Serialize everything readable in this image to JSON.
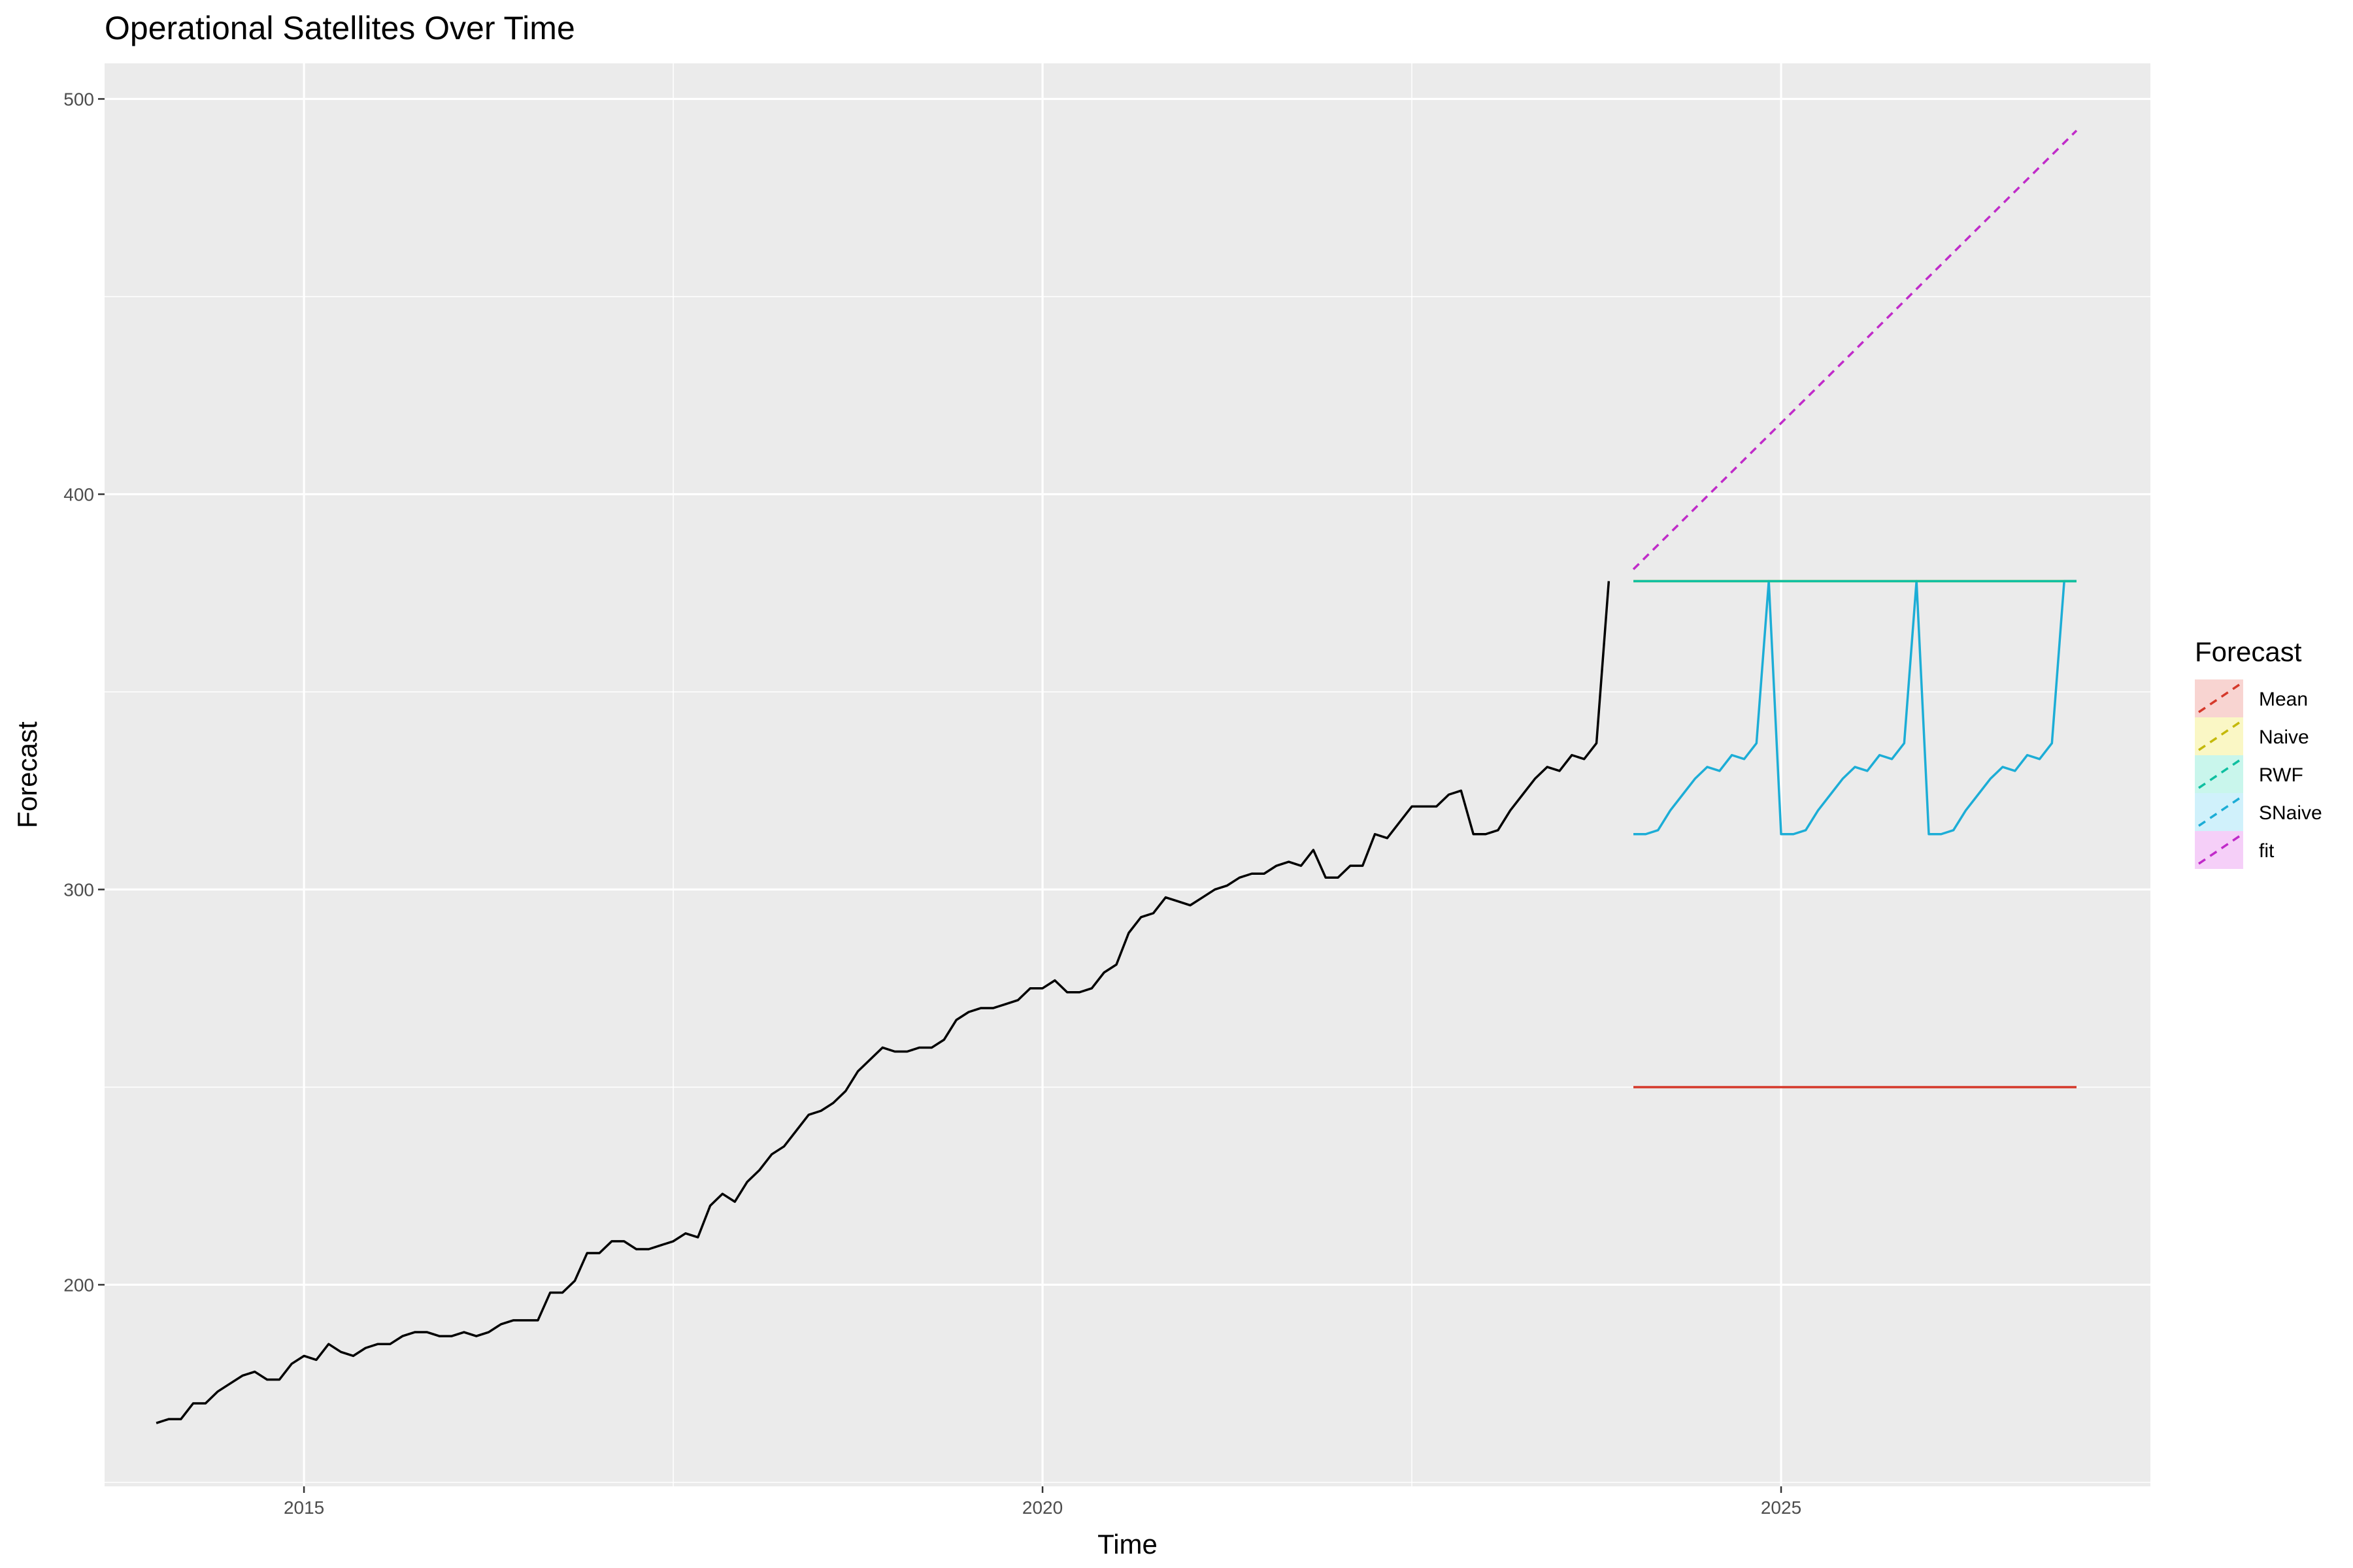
{
  "chart_data": {
    "type": "line",
    "title": "Operational Satellites Over Time",
    "xlabel": "Time",
    "ylabel": "Forecast",
    "xlim": [
      2013.65,
      2027.5
    ],
    "ylim": [
      149,
      509
    ],
    "x_ticks": [
      2015,
      2020,
      2025
    ],
    "x_tick_labels": [
      "2015",
      "2020",
      "2025"
    ],
    "y_ticks": [
      200,
      300,
      400,
      500
    ],
    "y_tick_labels": [
      "200",
      "300",
      "400",
      "500"
    ],
    "grid": true,
    "legend": {
      "title": "Forecast",
      "position": "right",
      "entries": [
        {
          "name": "Mean",
          "color": "#D5392B",
          "fill": "#F8D4D1"
        },
        {
          "name": "Naive",
          "color": "#C4B90B",
          "fill": "#FAF7C5"
        },
        {
          "name": "RWF",
          "color": "#0FBFA0",
          "fill": "#C9F6EC"
        },
        {
          "name": "SNaive",
          "color": "#1CADD6",
          "fill": "#D0F1FB"
        },
        {
          "name": "fit",
          "color": "#C02BC9",
          "fill": "#F5CFF8"
        }
      ]
    },
    "history": {
      "start": 2014.0,
      "freq": 12,
      "color": "#000000",
      "values": [
        165,
        166,
        166,
        170,
        170,
        173,
        175,
        177,
        178,
        176,
        176,
        180,
        182,
        181,
        185,
        183,
        182,
        184,
        185,
        185,
        187,
        188,
        188,
        187,
        187,
        188,
        187,
        188,
        190,
        191,
        191,
        191,
        198,
        198,
        201,
        208,
        208,
        211,
        211,
        209,
        209,
        210,
        211,
        213,
        212,
        220,
        223,
        221,
        226,
        229,
        233,
        235,
        239,
        243,
        244,
        246,
        249,
        254,
        257,
        260,
        259,
        259,
        260,
        260,
        262,
        267,
        269,
        270,
        270,
        271,
        272,
        275,
        275,
        277,
        274,
        274,
        275,
        279,
        281,
        289,
        293,
        294,
        298,
        297,
        296,
        298,
        300,
        301,
        303,
        304,
        304,
        306,
        307,
        306,
        310,
        303,
        303,
        306,
        306,
        314,
        313,
        317,
        321,
        321,
        321,
        324,
        325,
        314,
        314,
        315,
        320,
        324,
        328,
        331,
        330,
        334,
        333,
        337,
        378
      ]
    },
    "forecasts": {
      "start": 2024.0,
      "end": 2027.0,
      "freq": 12,
      "mean": {
        "value": 250,
        "color": "#D5392B"
      },
      "naive": {
        "value": 378,
        "color": "#C4B90B"
      },
      "rwf": {
        "value": 378,
        "color": "#0FBFA0"
      },
      "snaive": {
        "color": "#1CADD6",
        "season": [
          314,
          314,
          315,
          320,
          324,
          328,
          331,
          330,
          334,
          333,
          337,
          378
        ],
        "periods": 3
      },
      "fit": {
        "start_value": 381,
        "end_value": 492,
        "color": "#C02BC9",
        "dashed": true
      }
    }
  }
}
